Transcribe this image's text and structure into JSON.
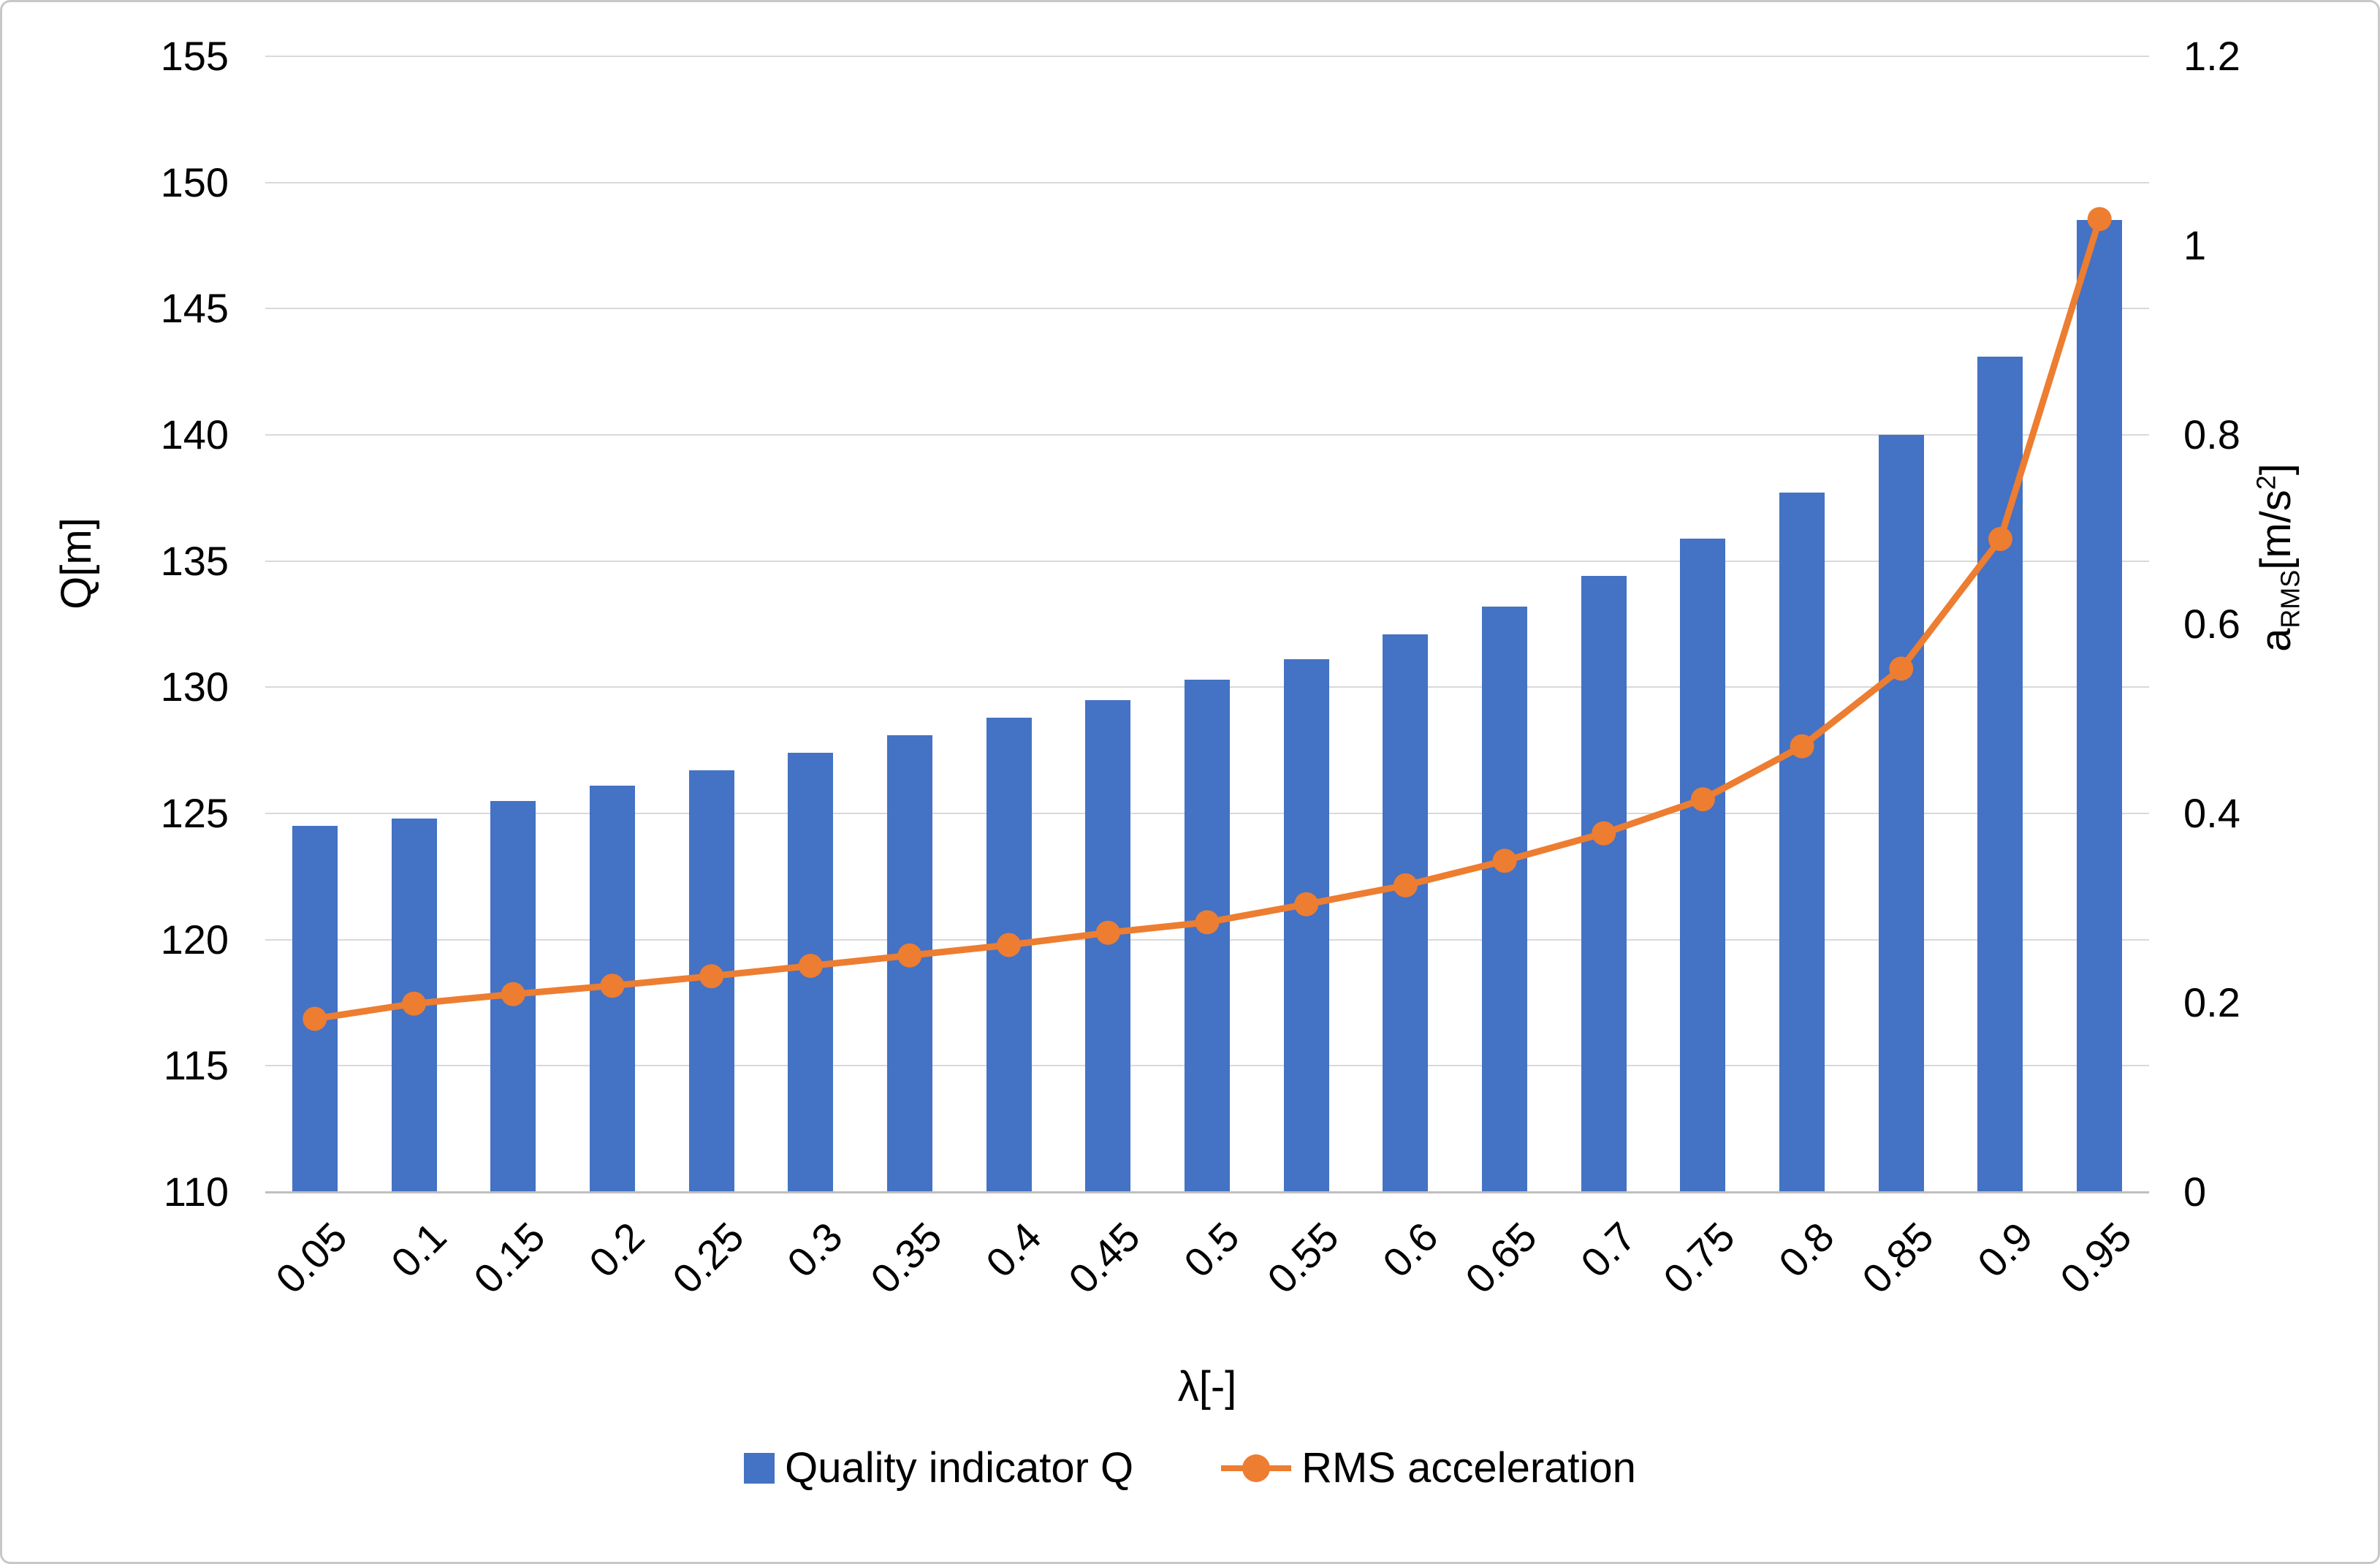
{
  "chart_data": {
    "type": "combo",
    "title": "",
    "categories": [
      "0.05",
      "0.1",
      "0.15",
      "0.2",
      "0.25",
      "0.3",
      "0.35",
      "0.4",
      "0.45",
      "0.5",
      "0.55",
      "0.6",
      "0.65",
      "0.7",
      "0.75",
      "0.8",
      "0.85",
      "0.9",
      "0.95"
    ],
    "series": [
      {
        "name": "Quality indicator Q",
        "type": "bar",
        "axis": "left",
        "values": [
          124.5,
          124.8,
          125.5,
          126.1,
          126.7,
          127.4,
          128.1,
          128.8,
          129.5,
          130.3,
          131.1,
          132.1,
          133.2,
          134.4,
          135.9,
          137.7,
          140.0,
          143.1,
          148.5
        ]
      },
      {
        "name": "RMS acceleration",
        "type": "line",
        "axis": "right",
        "values": [
          0.183,
          0.199,
          0.209,
          0.218,
          0.228,
          0.239,
          0.25,
          0.261,
          0.274,
          0.285,
          0.304,
          0.324,
          0.35,
          0.379,
          0.415,
          0.471,
          0.553,
          0.69,
          1.028
        ]
      }
    ],
    "xlabel": "λ[-]",
    "left_axis": {
      "title": "Q[m]",
      "min": 110,
      "max": 155,
      "ticks": [
        "155",
        "150",
        "145",
        "140",
        "135",
        "130",
        "125",
        "120",
        "115",
        "110"
      ]
    },
    "right_axis": {
      "title": "aRMS[m/s²]",
      "title_parts": {
        "base": "a",
        "sub": "RMS",
        "mid": "[m/s",
        "sup": "2",
        "end": "]"
      },
      "min": 0,
      "max": 1.2,
      "ticks": [
        "1.2",
        "1",
        "0.8",
        "0.6",
        "0.4",
        "0.2",
        "0"
      ]
    },
    "grid": true,
    "legend_position": "bottom"
  },
  "colors": {
    "bar": "#4472C4",
    "line": "#ED7D31",
    "grid": "#D9D9D9",
    "axis_line": "#BFBFBF",
    "text": "#000000",
    "frame_border": "#C8C8C8",
    "background": "#FFFFFF"
  }
}
